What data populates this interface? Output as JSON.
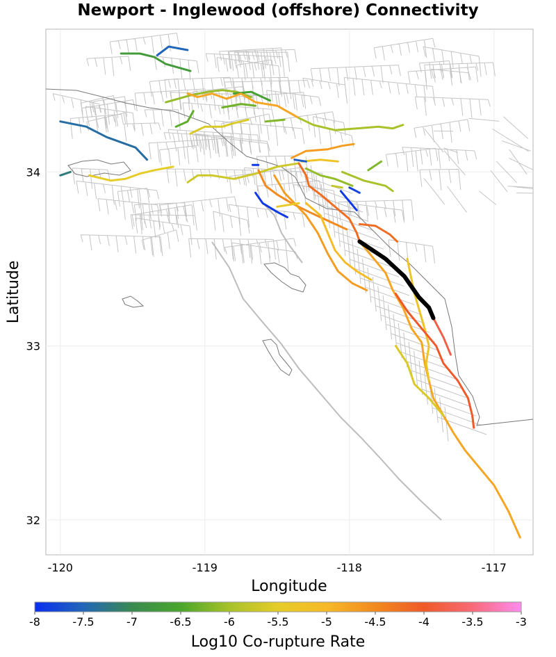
{
  "map": {
    "title": "Newport - Inglewood (offshore) Connectivity",
    "xlabel": "Longitude",
    "ylabel": "Latitude",
    "lon_range": [
      -120.1,
      -116.73
    ],
    "lat_range": [
      31.8,
      34.82
    ],
    "x_ticks": [
      "-120",
      "-119",
      "-118",
      "-117"
    ],
    "x_tick_values": [
      -120,
      -119,
      -118,
      -117
    ],
    "y_ticks": [
      "34",
      "33",
      "32"
    ],
    "y_tick_values": [
      34,
      33,
      32
    ],
    "grid": true
  },
  "colorbar": {
    "label": "Log10 Co-rupture Rate",
    "range": [
      -8,
      -3
    ],
    "ticks": [
      "-8",
      "-7.5",
      "-7",
      "-6.5",
      "-6",
      "-5.5",
      "-5",
      "-4.5",
      "-4",
      "-3.5",
      "-3"
    ],
    "tick_values": [
      -8,
      -7.5,
      -7,
      -6.5,
      -6,
      -5.5,
      -5,
      -4.5,
      -4,
      -3.5,
      -3
    ],
    "stops": [
      {
        "v": -8,
        "c": "#0a2ef0"
      },
      {
        "v": -7.5,
        "c": "#2166b8"
      },
      {
        "v": -7,
        "c": "#3a8a50"
      },
      {
        "v": -6.5,
        "c": "#4aa62a"
      },
      {
        "v": -6,
        "c": "#a8c22a"
      },
      {
        "v": -5.5,
        "c": "#e6cc28"
      },
      {
        "v": -5,
        "c": "#f7b928"
      },
      {
        "v": -4.5,
        "c": "#f28a1e"
      },
      {
        "v": -4,
        "c": "#ef5a28"
      },
      {
        "v": -3.5,
        "c": "#f86a78"
      },
      {
        "v": -3,
        "c": "#ff8cf0"
      }
    ]
  },
  "chart_data": {
    "type": "map",
    "target_fault": {
      "color": "#000000",
      "path": [
        [
          -117.93,
          33.6
        ],
        [
          -117.75,
          33.5
        ],
        [
          -117.62,
          33.4
        ],
        [
          -117.52,
          33.28
        ],
        [
          -117.45,
          33.22
        ],
        [
          -117.42,
          33.16
        ]
      ]
    },
    "faults": [
      {
        "rate": -7.4,
        "path": [
          [
            -120.0,
            34.29
          ],
          [
            -119.82,
            34.26
          ],
          [
            -119.68,
            34.2
          ],
          [
            -119.58,
            34.17
          ],
          [
            -119.48,
            34.14
          ],
          [
            -119.4,
            34.07
          ]
        ]
      },
      {
        "rate": -7.2,
        "path": [
          [
            -120.0,
            33.98
          ],
          [
            -119.93,
            34.0
          ]
        ]
      },
      {
        "rate": -7.5,
        "path": [
          [
            -119.33,
            34.67
          ],
          [
            -119.25,
            34.72
          ],
          [
            -119.12,
            34.7
          ]
        ]
      },
      {
        "rate": -6.7,
        "path": [
          [
            -119.58,
            34.68
          ],
          [
            -119.45,
            34.68
          ],
          [
            -119.35,
            34.66
          ],
          [
            -119.27,
            34.62
          ],
          [
            -119.1,
            34.58
          ]
        ]
      },
      {
        "rate": -5.5,
        "path": [
          [
            -119.8,
            33.98
          ],
          [
            -119.65,
            33.95
          ],
          [
            -119.55,
            33.96
          ],
          [
            -119.45,
            33.99
          ],
          [
            -119.35,
            34.01
          ],
          [
            -119.22,
            34.03
          ]
        ]
      },
      {
        "rate": -5.7,
        "path": [
          [
            -119.12,
            33.94
          ],
          [
            -119.05,
            33.98
          ],
          [
            -118.95,
            33.98
          ],
          [
            -118.8,
            33.96
          ],
          [
            -118.65,
            33.99
          ],
          [
            -118.5,
            34.03
          ],
          [
            -118.35,
            34.05
          ]
        ]
      },
      {
        "rate": -6.1,
        "path": [
          [
            -119.27,
            34.4
          ],
          [
            -119.1,
            34.44
          ],
          [
            -118.98,
            34.46
          ],
          [
            -118.88,
            34.47
          ],
          [
            -118.78,
            34.46
          ],
          [
            -118.68,
            34.43
          ]
        ]
      },
      {
        "rate": -6.4,
        "path": [
          [
            -119.2,
            34.26
          ],
          [
            -119.12,
            34.29
          ],
          [
            -119.08,
            34.35
          ]
        ]
      },
      {
        "rate": -5.6,
        "path": [
          [
            -119.1,
            34.22
          ],
          [
            -119.0,
            34.26
          ],
          [
            -118.88,
            34.26
          ],
          [
            -118.8,
            34.28
          ],
          [
            -118.7,
            34.3
          ]
        ]
      },
      {
        "rate": -6.3,
        "path": [
          [
            -118.88,
            34.37
          ],
          [
            -118.75,
            34.39
          ],
          [
            -118.65,
            34.38
          ]
        ]
      },
      {
        "rate": -6.6,
        "path": [
          [
            -118.8,
            34.45
          ],
          [
            -118.68,
            34.46
          ],
          [
            -118.55,
            34.41
          ]
        ]
      },
      {
        "rate": -6.2,
        "path": [
          [
            -118.58,
            34.29
          ],
          [
            -118.45,
            34.3
          ]
        ]
      },
      {
        "rate": -4.8,
        "path": [
          [
            -119.12,
            34.45
          ],
          [
            -119.05,
            34.43
          ],
          [
            -118.95,
            34.45
          ],
          [
            -118.85,
            34.42
          ],
          [
            -118.75,
            34.45
          ],
          [
            -118.65,
            34.4
          ],
          [
            -118.5,
            34.38
          ],
          [
            -118.35,
            34.31
          ]
        ]
      },
      {
        "rate": -6.0,
        "path": [
          [
            -118.35,
            34.31
          ],
          [
            -118.25,
            34.27
          ],
          [
            -118.1,
            34.24
          ],
          [
            -117.95,
            34.25
          ],
          [
            -117.8,
            34.26
          ],
          [
            -117.7,
            34.25
          ],
          [
            -117.63,
            34.27
          ]
        ]
      },
      {
        "rate": -4.7,
        "path": [
          [
            -118.4,
            34.08
          ],
          [
            -118.3,
            34.12
          ],
          [
            -118.15,
            34.13
          ],
          [
            -118.05,
            34.15
          ],
          [
            -117.97,
            34.16
          ]
        ]
      },
      {
        "rate": -5.3,
        "path": [
          [
            -118.33,
            34.06
          ],
          [
            -118.2,
            34.07
          ],
          [
            -118.08,
            34.06
          ]
        ]
      },
      {
        "rate": -6.1,
        "path": [
          [
            -118.3,
            34.02
          ],
          [
            -118.2,
            33.98
          ],
          [
            -118.1,
            33.96
          ],
          [
            -117.98,
            33.92
          ]
        ]
      },
      {
        "rate": -6.0,
        "path": [
          [
            -118.05,
            34.0
          ],
          [
            -117.9,
            33.95
          ],
          [
            -117.75,
            33.92
          ],
          [
            -117.7,
            33.89
          ]
        ]
      },
      {
        "rate": -6.2,
        "path": [
          [
            -117.87,
            34.01
          ],
          [
            -117.78,
            34.06
          ]
        ]
      },
      {
        "rate": -5.8,
        "path": [
          [
            -118.12,
            33.92
          ],
          [
            -118.05,
            33.91
          ]
        ]
      },
      {
        "rate": -7.6,
        "path": [
          [
            -118.38,
            34.07
          ],
          [
            -118.3,
            34.06
          ]
        ]
      },
      {
        "rate": -7.8,
        "path": [
          [
            -118.0,
            33.91
          ],
          [
            -117.93,
            33.88
          ]
        ]
      },
      {
        "rate": -7.9,
        "path": [
          [
            -118.06,
            33.89
          ],
          [
            -117.95,
            33.78
          ]
        ]
      },
      {
        "rate": -7.9,
        "path": [
          [
            -118.65,
            33.88
          ],
          [
            -118.6,
            33.82
          ],
          [
            -118.5,
            33.77
          ],
          [
            -118.43,
            33.74
          ]
        ]
      },
      {
        "rate": -7.9,
        "path": [
          [
            -118.67,
            34.04
          ],
          [
            -118.63,
            34.04
          ]
        ]
      },
      {
        "rate": -4.5,
        "path": [
          [
            -118.63,
            34.01
          ],
          [
            -118.58,
            33.92
          ],
          [
            -118.5,
            33.87
          ],
          [
            -118.4,
            33.82
          ],
          [
            -118.28,
            33.77
          ],
          [
            -118.15,
            33.72
          ],
          [
            -118.02,
            33.67
          ]
        ]
      },
      {
        "rate": -4.2,
        "path": [
          [
            -118.35,
            34.05
          ],
          [
            -118.3,
            33.98
          ],
          [
            -118.28,
            33.92
          ],
          [
            -118.2,
            33.87
          ],
          [
            -118.1,
            33.8
          ],
          [
            -118.0,
            33.73
          ],
          [
            -117.95,
            33.65
          ],
          [
            -117.93,
            33.6
          ]
        ]
      },
      {
        "rate": -4.7,
        "path": [
          [
            -118.52,
            33.98
          ],
          [
            -118.45,
            33.88
          ],
          [
            -118.38,
            33.82
          ],
          [
            -118.3,
            33.75
          ],
          [
            -118.22,
            33.65
          ],
          [
            -118.15,
            33.53
          ],
          [
            -118.08,
            33.43
          ],
          [
            -117.98,
            33.36
          ],
          [
            -117.88,
            33.32
          ]
        ]
      },
      {
        "rate": -5.4,
        "path": [
          [
            -118.5,
            33.8
          ],
          [
            -118.35,
            33.82
          ]
        ]
      },
      {
        "rate": -5.1,
        "path": [
          [
            -118.3,
            33.82
          ],
          [
            -118.2,
            33.75
          ],
          [
            -118.15,
            33.65
          ],
          [
            -118.1,
            33.55
          ],
          [
            -118.03,
            33.48
          ],
          [
            -117.95,
            33.43
          ],
          [
            -117.85,
            33.38
          ]
        ]
      },
      {
        "rate": -4.2,
        "path": [
          [
            -117.93,
            33.7
          ],
          [
            -117.82,
            33.69
          ],
          [
            -117.72,
            33.64
          ],
          [
            -117.67,
            33.6
          ]
        ]
      },
      {
        "rate": -4.8,
        "path": [
          [
            -117.93,
            33.6
          ],
          [
            -117.85,
            33.52
          ],
          [
            -117.75,
            33.42
          ],
          [
            -117.7,
            33.32
          ],
          [
            -117.63,
            33.22
          ],
          [
            -117.57,
            33.1
          ],
          [
            -117.5,
            33.02
          ],
          [
            -117.48,
            32.9
          ],
          [
            -117.45,
            32.8
          ],
          [
            -117.42,
            32.7
          ],
          [
            -117.35,
            32.6
          ],
          [
            -117.28,
            32.5
          ],
          [
            -117.2,
            32.4
          ],
          [
            -117.1,
            32.3
          ],
          [
            -117.0,
            32.2
          ],
          [
            -116.9,
            32.05
          ],
          [
            -116.82,
            31.9
          ]
        ]
      },
      {
        "rate": -5.3,
        "path": [
          [
            -117.6,
            33.5
          ],
          [
            -117.55,
            33.3
          ],
          [
            -117.48,
            33.1
          ],
          [
            -117.45,
            33.0
          ],
          [
            -117.47,
            32.9
          ],
          [
            -117.45,
            32.8
          ]
        ]
      },
      {
        "rate": -5.6,
        "path": [
          [
            -117.68,
            33.0
          ],
          [
            -117.6,
            32.9
          ],
          [
            -117.55,
            32.78
          ],
          [
            -117.45,
            32.7
          ],
          [
            -117.35,
            32.6
          ]
        ]
      },
      {
        "rate": -4.0,
        "path": [
          [
            -117.68,
            33.3
          ],
          [
            -117.6,
            33.2
          ],
          [
            -117.5,
            33.1
          ],
          [
            -117.4,
            33.0
          ],
          [
            -117.35,
            32.9
          ],
          [
            -117.25,
            32.8
          ],
          [
            -117.18,
            32.7
          ],
          [
            -117.15,
            32.6
          ],
          [
            -117.14,
            32.53
          ]
        ]
      },
      {
        "rate": -3.8,
        "path": [
          [
            -117.42,
            33.16
          ],
          [
            -117.35,
            33.05
          ],
          [
            -117.3,
            32.95
          ]
        ]
      }
    ]
  }
}
